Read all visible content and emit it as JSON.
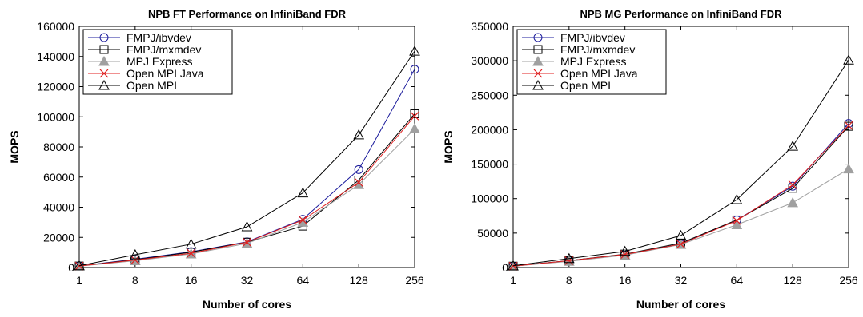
{
  "chart_data": [
    {
      "type": "line",
      "title": "NPB FT Performance on InfiniBand FDR",
      "xlabel": "Number of cores",
      "ylabel": "MOPS",
      "x": [
        "1",
        "8",
        "16",
        "32",
        "64",
        "128",
        "256"
      ],
      "ylim": [
        0,
        160000
      ],
      "yticks": [
        "0",
        "20000",
        "40000",
        "60000",
        "80000",
        "100000",
        "120000",
        "140000",
        "160000"
      ],
      "legend_position": "top-left",
      "grid": false,
      "series": [
        {
          "name": "FMPJ/ibvdev",
          "marker": "circle",
          "color": "#1c1c9c",
          "values": [
            1000,
            5500,
            10500,
            17000,
            32000,
            65000,
            131500
          ]
        },
        {
          "name": "FMPJ/mxmdev",
          "marker": "square",
          "color": "#000000",
          "values": [
            1000,
            5200,
            10200,
            16800,
            27500,
            58000,
            102000
          ]
        },
        {
          "name": "MPJ Express",
          "marker": "filled-triangle",
          "color": "#a0a0a0",
          "values": [
            900,
            4500,
            9000,
            16000,
            30000,
            55000,
            92000
          ]
        },
        {
          "name": "Open MPI Java",
          "marker": "x",
          "color": "#e02020",
          "values": [
            1000,
            5000,
            9500,
            16800,
            31500,
            56500,
            100500
          ]
        },
        {
          "name": "Open MPI",
          "marker": "triangle",
          "color": "#000000",
          "values": [
            1200,
            8500,
            15500,
            27000,
            49500,
            88000,
            143500
          ]
        }
      ]
    },
    {
      "type": "line",
      "title": "NPB MG Performance on InfiniBand FDR",
      "xlabel": "Number of cores",
      "ylabel": "MOPS",
      "x": [
        "1",
        "8",
        "16",
        "32",
        "64",
        "128",
        "256"
      ],
      "ylim": [
        0,
        350000
      ],
      "yticks": [
        "0",
        "50000",
        "100000",
        "150000",
        "200000",
        "250000",
        "300000",
        "350000"
      ],
      "legend_position": "top-left",
      "grid": false,
      "series": [
        {
          "name": "FMPJ/ibvdev",
          "marker": "circle",
          "color": "#1c1c9c",
          "values": [
            2000,
            10000,
            19000,
            34000,
            69000,
            118000,
            209000
          ]
        },
        {
          "name": "FMPJ/mxmdev",
          "marker": "square",
          "color": "#000000",
          "values": [
            2000,
            10000,
            19500,
            35500,
            69000,
            115000,
            205000
          ]
        },
        {
          "name": "MPJ Express",
          "marker": "filled-triangle",
          "color": "#a0a0a0",
          "values": [
            1800,
            9000,
            18000,
            33500,
            62000,
            94000,
            143000
          ]
        },
        {
          "name": "Open MPI Java",
          "marker": "x",
          "color": "#e02020",
          "values": [
            2000,
            10000,
            19000,
            34000,
            68000,
            120000,
            206000
          ]
        },
        {
          "name": "Open MPI",
          "marker": "triangle",
          "color": "#000000",
          "values": [
            2500,
            13000,
            23500,
            46500,
            98500,
            176000,
            301000
          ]
        }
      ]
    }
  ]
}
